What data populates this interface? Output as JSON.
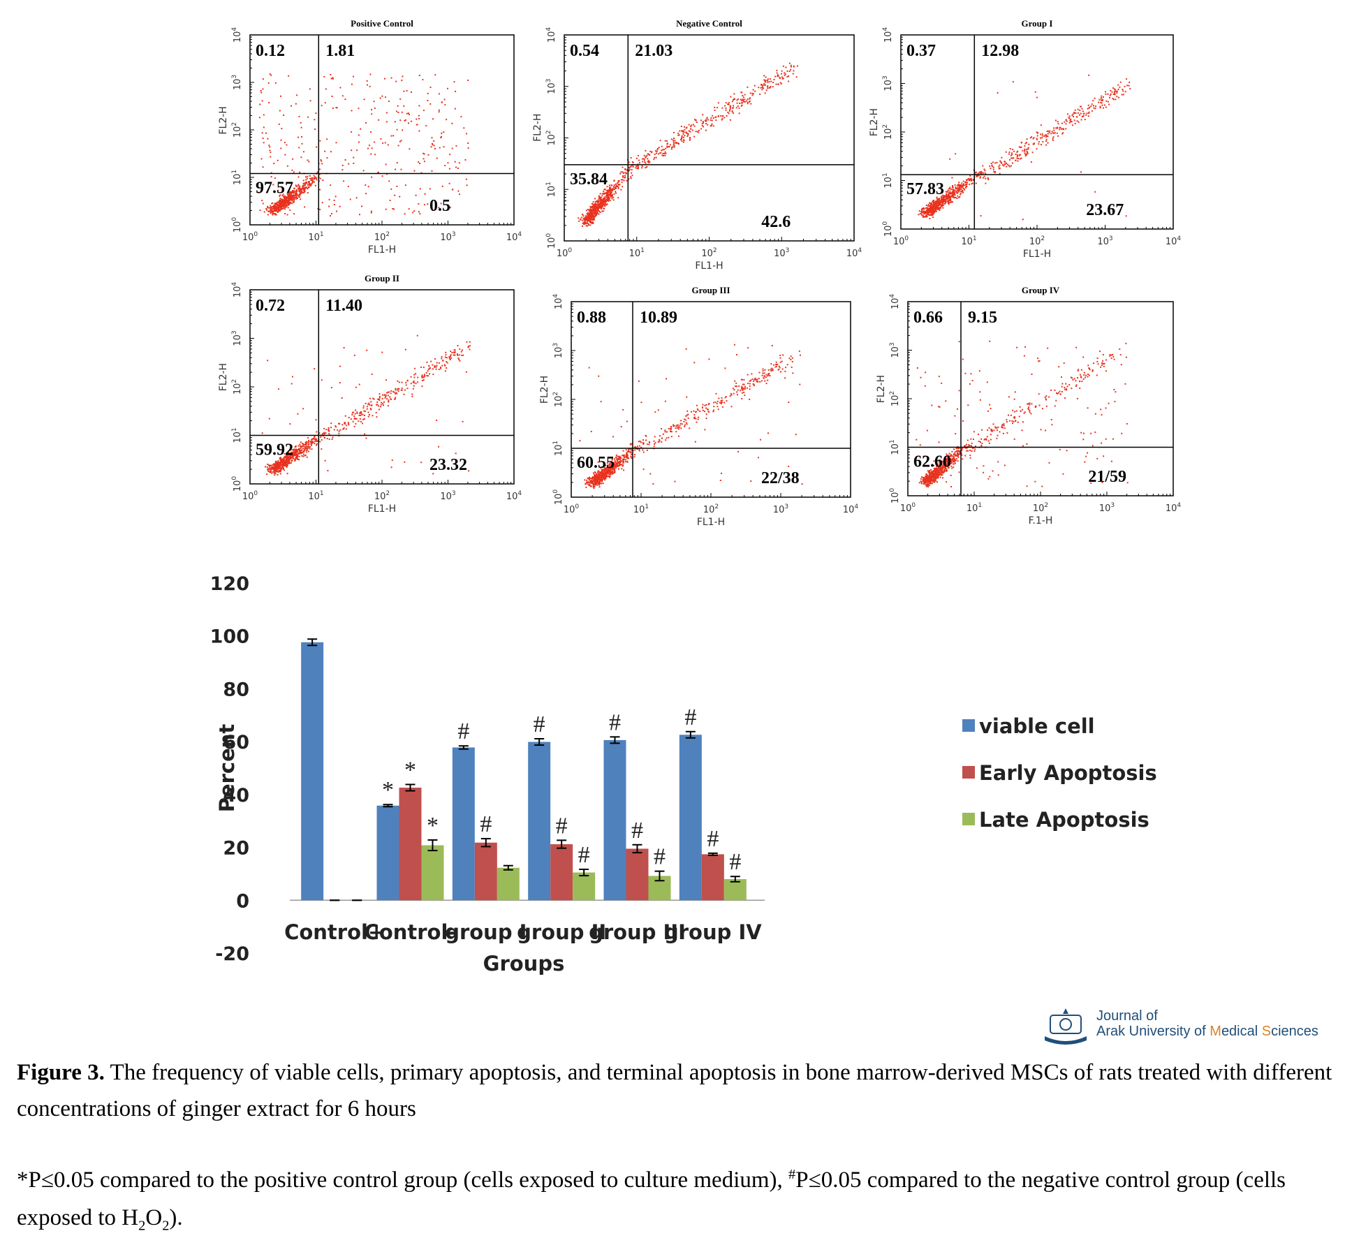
{
  "flow_panels": [
    {
      "title": "Positive Control",
      "quadrants": {
        "ul": "0.12",
        "ur": "1.81",
        "ll": "97.57",
        "lr": "0.5"
      },
      "xlabel": "FL1-H",
      "ylabel": "FL2-H"
    },
    {
      "title": "Negative Control",
      "quadrants": {
        "ul": "0.54",
        "ur": "21.03",
        "ll": "35.84",
        "lr": "42.6"
      },
      "xlabel": "FL1-H",
      "ylabel": "FL2-H"
    },
    {
      "title": "Group I",
      "quadrants": {
        "ul": "0.37",
        "ur": "12.98",
        "ll": "57.83",
        "lr": "23.67"
      },
      "xlabel": "FL1-H",
      "ylabel": "FL2-H"
    },
    {
      "title": "Group II",
      "quadrants": {
        "ul": "0.72",
        "ur": "11.40",
        "ll": "59.92",
        "lr": "23.32"
      },
      "xlabel": "FL1-H",
      "ylabel": "FL2-H"
    },
    {
      "title": "Group III",
      "quadrants": {
        "ul": "0.88",
        "ur": "10.89",
        "ll": "60.55",
        "lr": "22/38"
      },
      "xlabel": "FL1-H",
      "ylabel": "FL2-H"
    },
    {
      "title": "Group IV",
      "quadrants": {
        "ul": "0.66",
        "ur": "9.15",
        "ll": "62.60",
        "lr": "21/59"
      },
      "xlabel": "F.1-H",
      "ylabel": "FL2-H"
    }
  ],
  "flow_axis_ticks": [
    "10",
    "10",
    "10",
    "10",
    "10"
  ],
  "flow_axis_exps": [
    "0",
    "1",
    "2",
    "3",
    "4"
  ],
  "chart_data": {
    "type": "bar",
    "categories": [
      "Control+",
      "Control-",
      "group I",
      "group II",
      "group III",
      "group IV"
    ],
    "series": [
      {
        "name": "viable cell",
        "color": "#4f81bd",
        "values": [
          97.6,
          35.8,
          57.8,
          59.9,
          60.6,
          62.6
        ],
        "errors": [
          1.2,
          0.4,
          0.6,
          1.2,
          1.2,
          1.2
        ],
        "marks": [
          "",
          "*",
          "#",
          "#",
          "#",
          "#"
        ]
      },
      {
        "name": "Early Apoptosis",
        "color": "#c0504d",
        "values": [
          0,
          42.6,
          21.8,
          21.2,
          19.5,
          17.4
        ],
        "errors": [
          0,
          1.2,
          1.5,
          1.5,
          1.5,
          0.4
        ],
        "marks": [
          "",
          "*",
          "#",
          "#",
          "#",
          "#"
        ]
      },
      {
        "name": "Late Apoptosis",
        "color": "#9bbb59",
        "values": [
          0,
          20.8,
          12.3,
          10.5,
          9.2,
          8.0
        ],
        "errors": [
          0,
          2.0,
          0.8,
          1.2,
          1.8,
          1.0
        ],
        "marks": [
          "",
          "*",
          "",
          "#",
          "#",
          "#"
        ]
      }
    ],
    "xlabel": "Groups",
    "ylabel": "Percent",
    "ylim": [
      -20,
      120
    ],
    "yticks": [
      "120",
      "100",
      "80",
      "60",
      "40",
      "20",
      "0",
      "-20"
    ],
    "legend_placement": "right"
  },
  "journal": {
    "line1": "Journal of",
    "line2a": "Arak University of ",
    "line2b": "M",
    "line2c": "edical ",
    "line2d": "S",
    "line2e": "ciences"
  },
  "caption": {
    "label": "Figure 3.",
    "text": " The frequency of viable cells, primary apoptosis, and terminal apoptosis in bone marrow-derived MSCs of rats treated with different concentrations of ginger extract for 6 hours"
  },
  "footnote": {
    "part1": "*P≤0.05 compared to the positive control group (cells exposed to culture medium), ",
    "sup": "#",
    "part2": "P≤0.05 compared to the negative control group (cells exposed to H",
    "sub1": "2",
    "mid": "O",
    "sub2": "2",
    "end": ")."
  }
}
